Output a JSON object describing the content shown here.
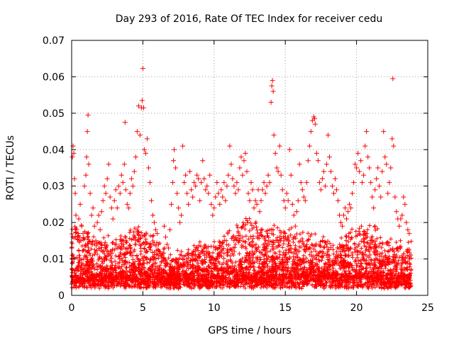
{
  "chart_data": {
    "type": "scatter",
    "title": "Day 293 of 2016, Rate Of TEC Index for receiver cedu",
    "xlabel": "GPS time / hours",
    "ylabel": "ROTI / TECUs",
    "xlim": [
      0,
      25
    ],
    "ylim": [
      0,
      0.07
    ],
    "xticks": [
      0,
      5,
      10,
      15,
      20,
      25
    ],
    "xtick_labels": [
      "0",
      "5",
      "10",
      "15",
      "20",
      "25"
    ],
    "yticks": [
      0,
      0.01,
      0.02,
      0.03,
      0.04,
      0.05,
      0.06,
      0.07
    ],
    "ytick_labels": [
      "0",
      "0.01",
      "0.02",
      "0.03",
      "0.04",
      "0.05",
      "0.06",
      "0.07"
    ],
    "grid": true,
    "marker": "+",
    "color": "#ff0000",
    "series": [
      {
        "name": "ROTI",
        "points": [
          [
            0.0,
            0.013
          ],
          [
            0.05,
            0.038
          ],
          [
            0.1,
            0.041
          ],
          [
            0.15,
            0.039
          ],
          [
            0.2,
            0.032
          ],
          [
            0.25,
            0.028
          ],
          [
            0.3,
            0.022
          ],
          [
            0.35,
            0.018
          ],
          [
            0.4,
            0.016
          ],
          [
            0.5,
            0.021
          ],
          [
            0.6,
            0.025
          ],
          [
            0.7,
            0.019
          ],
          [
            0.8,
            0.017
          ],
          [
            0.9,
            0.03
          ],
          [
            1.0,
            0.033
          ],
          [
            1.05,
            0.038
          ],
          [
            1.1,
            0.045
          ],
          [
            1.15,
            0.0495
          ],
          [
            1.2,
            0.036
          ],
          [
            1.3,
            0.028
          ],
          [
            1.4,
            0.022
          ],
          [
            1.5,
            0.024
          ],
          [
            1.6,
            0.019
          ],
          [
            1.7,
            0.015
          ],
          [
            1.8,
            0.02
          ],
          [
            1.9,
            0.022
          ],
          [
            2.0,
            0.018
          ],
          [
            2.1,
            0.023
          ],
          [
            2.2,
            0.026
          ],
          [
            2.3,
            0.03
          ],
          [
            2.4,
            0.028
          ],
          [
            2.5,
            0.032
          ],
          [
            2.6,
            0.036
          ],
          [
            2.7,
            0.027
          ],
          [
            2.8,
            0.024
          ],
          [
            2.9,
            0.021
          ],
          [
            3.0,
            0.026
          ],
          [
            3.1,
            0.029
          ],
          [
            3.2,
            0.024
          ],
          [
            3.3,
            0.03
          ],
          [
            3.4,
            0.028
          ],
          [
            3.5,
            0.033
          ],
          [
            3.6,
            0.031
          ],
          [
            3.7,
            0.036
          ],
          [
            3.75,
            0.0475
          ],
          [
            3.8,
            0.029
          ],
          [
            3.9,
            0.025
          ],
          [
            4.0,
            0.024
          ],
          [
            4.1,
            0.028
          ],
          [
            4.2,
            0.032
          ],
          [
            4.3,
            0.03
          ],
          [
            4.4,
            0.034
          ],
          [
            4.5,
            0.038
          ],
          [
            4.6,
            0.045
          ],
          [
            4.7,
            0.052
          ],
          [
            4.8,
            0.044
          ],
          [
            4.9,
            0.0515
          ],
          [
            4.95,
            0.0535
          ],
          [
            5.0,
            0.0623
          ],
          [
            5.05,
            0.0515
          ],
          [
            5.1,
            0.04
          ],
          [
            5.2,
            0.039
          ],
          [
            5.3,
            0.043
          ],
          [
            5.4,
            0.035
          ],
          [
            5.5,
            0.031
          ],
          [
            5.6,
            0.026
          ],
          [
            5.7,
            0.022
          ],
          [
            5.8,
            0.02
          ],
          [
            5.9,
            0.018
          ],
          [
            6.0,
            0.017
          ],
          [
            6.1,
            0.014
          ],
          [
            6.2,
            0.012
          ],
          [
            6.3,
            0.011
          ],
          [
            6.5,
            0.019
          ],
          [
            6.6,
            0.016
          ],
          [
            6.7,
            0.014
          ],
          [
            6.8,
            0.013
          ],
          [
            6.9,
            0.018
          ],
          [
            7.0,
            0.025
          ],
          [
            7.1,
            0.031
          ],
          [
            7.15,
            0.037
          ],
          [
            7.2,
            0.04
          ],
          [
            7.3,
            0.035
          ],
          [
            7.4,
            0.028
          ],
          [
            7.5,
            0.024
          ],
          [
            7.6,
            0.02
          ],
          [
            7.7,
            0.022
          ],
          [
            7.8,
            0.041
          ],
          [
            7.9,
            0.031
          ],
          [
            8.0,
            0.033
          ],
          [
            8.1,
            0.028
          ],
          [
            8.2,
            0.025
          ],
          [
            8.3,
            0.034
          ],
          [
            8.4,
            0.029
          ],
          [
            8.5,
            0.027
          ],
          [
            8.6,
            0.031
          ],
          [
            8.7,
            0.03
          ],
          [
            8.8,
            0.033
          ],
          [
            8.9,
            0.032
          ],
          [
            9.0,
            0.026
          ],
          [
            9.1,
            0.031
          ],
          [
            9.2,
            0.037
          ],
          [
            9.3,
            0.032
          ],
          [
            9.4,
            0.029
          ],
          [
            9.5,
            0.03
          ],
          [
            9.6,
            0.028
          ],
          [
            9.7,
            0.033
          ],
          [
            9.8,
            0.025
          ],
          [
            9.9,
            0.022
          ],
          [
            10.0,
            0.024
          ],
          [
            10.1,
            0.027
          ],
          [
            10.2,
            0.031
          ],
          [
            10.3,
            0.028
          ],
          [
            10.4,
            0.025
          ],
          [
            10.5,
            0.029
          ],
          [
            10.6,
            0.027
          ],
          [
            10.7,
            0.031
          ],
          [
            10.8,
            0.026
          ],
          [
            10.9,
            0.03
          ],
          [
            11.0,
            0.033
          ],
          [
            11.1,
            0.041
          ],
          [
            11.2,
            0.036
          ],
          [
            11.3,
            0.032
          ],
          [
            11.4,
            0.03
          ],
          [
            11.5,
            0.028
          ],
          [
            11.6,
            0.031
          ],
          [
            11.7,
            0.029
          ],
          [
            11.8,
            0.035
          ],
          [
            11.9,
            0.038
          ],
          [
            12.0,
            0.033
          ],
          [
            12.1,
            0.037
          ],
          [
            12.2,
            0.039
          ],
          [
            12.3,
            0.034
          ],
          [
            12.4,
            0.028
          ],
          [
            12.5,
            0.026
          ],
          [
            12.6,
            0.031
          ],
          [
            12.7,
            0.029
          ],
          [
            12.8,
            0.024
          ],
          [
            12.9,
            0.026
          ],
          [
            13.0,
            0.025
          ],
          [
            13.1,
            0.029
          ],
          [
            13.2,
            0.023
          ],
          [
            13.3,
            0.026
          ],
          [
            13.4,
            0.029
          ],
          [
            13.5,
            0.031
          ],
          [
            13.6,
            0.028
          ],
          [
            13.7,
            0.03
          ],
          [
            13.8,
            0.033
          ],
          [
            13.9,
            0.031
          ],
          [
            14.0,
            0.053
          ],
          [
            14.05,
            0.0575
          ],
          [
            14.1,
            0.059
          ],
          [
            14.15,
            0.056
          ],
          [
            14.2,
            0.044
          ],
          [
            14.3,
            0.039
          ],
          [
            14.4,
            0.035
          ],
          [
            14.5,
            0.034
          ],
          [
            14.6,
            0.041
          ],
          [
            14.7,
            0.033
          ],
          [
            14.8,
            0.029
          ],
          [
            14.9,
            0.026
          ],
          [
            15.0,
            0.024
          ],
          [
            15.1,
            0.028
          ],
          [
            15.2,
            0.026
          ],
          [
            15.3,
            0.04
          ],
          [
            15.4,
            0.033
          ],
          [
            15.5,
            0.025
          ],
          [
            15.6,
            0.022
          ],
          [
            15.7,
            0.019
          ],
          [
            15.8,
            0.023
          ],
          [
            15.9,
            0.026
          ],
          [
            16.0,
            0.036
          ],
          [
            16.1,
            0.031
          ],
          [
            16.2,
            0.029
          ],
          [
            16.3,
            0.027
          ],
          [
            16.4,
            0.026
          ],
          [
            16.5,
            0.031
          ],
          [
            16.6,
            0.037
          ],
          [
            16.7,
            0.041
          ],
          [
            16.8,
            0.045
          ],
          [
            16.9,
            0.048
          ],
          [
            17.0,
            0.049
          ],
          [
            17.05,
            0.0485
          ],
          [
            17.1,
            0.047
          ],
          [
            17.2,
            0.039
          ],
          [
            17.3,
            0.037
          ],
          [
            17.4,
            0.031
          ],
          [
            17.5,
            0.029
          ],
          [
            17.6,
            0.032
          ],
          [
            17.7,
            0.034
          ],
          [
            17.8,
            0.03
          ],
          [
            17.9,
            0.036
          ],
          [
            18.0,
            0.044
          ],
          [
            18.1,
            0.038
          ],
          [
            18.2,
            0.034
          ],
          [
            18.3,
            0.03
          ],
          [
            18.4,
            0.028
          ],
          [
            18.5,
            0.032
          ],
          [
            18.6,
            0.029
          ],
          [
            18.7,
            0.026
          ],
          [
            18.8,
            0.022
          ],
          [
            18.9,
            0.02
          ],
          [
            19.0,
            0.019
          ],
          [
            19.1,
            0.022
          ],
          [
            19.2,
            0.024
          ],
          [
            19.3,
            0.021
          ],
          [
            19.4,
            0.023
          ],
          [
            19.5,
            0.025
          ],
          [
            19.6,
            0.024
          ],
          [
            19.7,
            0.028
          ],
          [
            19.8,
            0.031
          ],
          [
            19.9,
            0.036
          ],
          [
            20.0,
            0.035
          ],
          [
            20.1,
            0.039
          ],
          [
            20.2,
            0.034
          ],
          [
            20.3,
            0.037
          ],
          [
            20.4,
            0.031
          ],
          [
            20.5,
            0.033
          ],
          [
            20.6,
            0.041
          ],
          [
            20.7,
            0.045
          ],
          [
            20.8,
            0.038
          ],
          [
            20.9,
            0.035
          ],
          [
            21.0,
            0.031
          ],
          [
            21.1,
            0.027
          ],
          [
            21.2,
            0.024
          ],
          [
            21.3,
            0.029
          ],
          [
            21.4,
            0.032
          ],
          [
            21.5,
            0.035
          ],
          [
            21.6,
            0.03
          ],
          [
            21.7,
            0.027
          ],
          [
            21.8,
            0.034
          ],
          [
            21.9,
            0.045
          ],
          [
            22.0,
            0.038
          ],
          [
            22.1,
            0.036
          ],
          [
            22.2,
            0.028
          ],
          [
            22.3,
            0.031
          ],
          [
            22.4,
            0.035
          ],
          [
            22.5,
            0.043
          ],
          [
            22.55,
            0.0595
          ],
          [
            22.6,
            0.041
          ],
          [
            22.7,
            0.027
          ],
          [
            22.8,
            0.023
          ],
          [
            22.9,
            0.021
          ],
          [
            23.0,
            0.019
          ],
          [
            23.1,
            0.021
          ],
          [
            23.2,
            0.022
          ],
          [
            23.3,
            0.027
          ],
          [
            23.4,
            0.025
          ],
          [
            23.5,
            0.02
          ],
          [
            23.6,
            0.018
          ],
          [
            23.7,
            0.017
          ]
        ]
      }
    ]
  }
}
